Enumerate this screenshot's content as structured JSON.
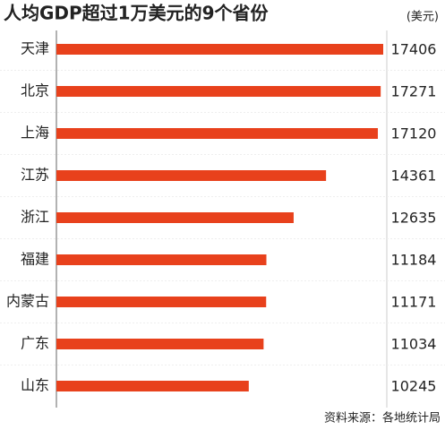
{
  "chart_data": {
    "type": "bar",
    "orientation": "horizontal",
    "title": "人均GDP超过1万美元的9个省份",
    "unit": "(美元)",
    "source": "资料来源：各地统计局",
    "categories": [
      "天津",
      "北京",
      "上海",
      "江苏",
      "浙江",
      "福建",
      "内蒙古",
      "广东",
      "山东"
    ],
    "values": [
      17406,
      17271,
      17120,
      14361,
      12635,
      11184,
      11171,
      11034,
      10245
    ],
    "color": "#e8411c",
    "xlim": [
      0,
      17406
    ]
  }
}
